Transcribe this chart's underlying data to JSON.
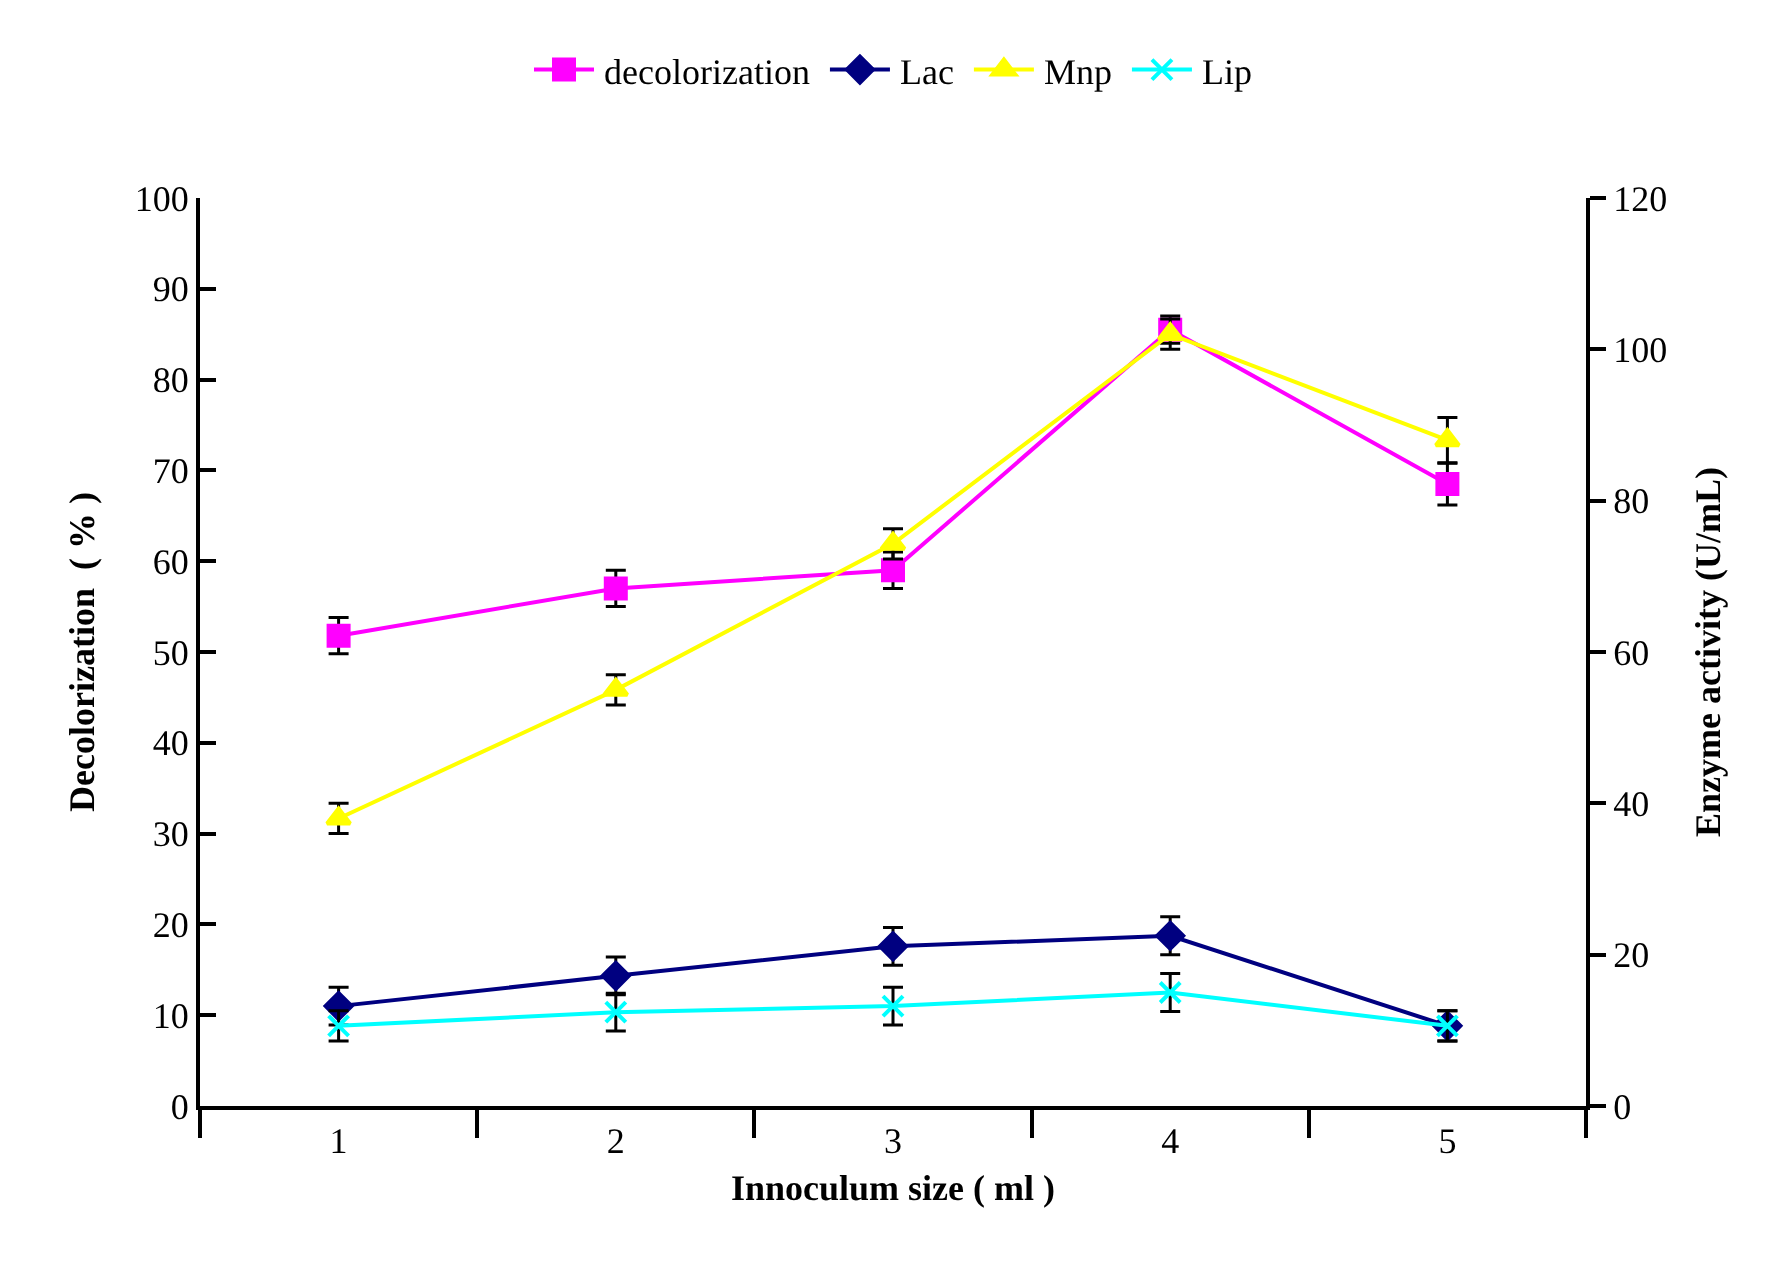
{
  "chart_data": {
    "type": "line",
    "xlabel": "Innoculum size ( ml )",
    "ylabel": "Decolorization  ( % )",
    "y2label": "Enzyme activity (U/mL)",
    "x": [
      1,
      2,
      3,
      4,
      5
    ],
    "xlim": [
      0.5,
      5.5
    ],
    "xticks": [
      1,
      2,
      3,
      4,
      5
    ],
    "ylim": [
      0,
      100
    ],
    "yticks": [
      0,
      10,
      20,
      30,
      40,
      50,
      60,
      70,
      80,
      90,
      100
    ],
    "y2lim": [
      0,
      120
    ],
    "y2ticks": [
      0,
      20,
      40,
      60,
      80,
      100,
      120
    ],
    "legend": "top",
    "series": [
      {
        "name": "decolorization",
        "color": "#ff00ff",
        "marker": "square",
        "values": [
          51.8,
          57,
          59,
          85.5,
          68.5
        ],
        "errors": [
          2,
          2,
          2,
          1.5,
          2.3
        ]
      },
      {
        "name": "Lac",
        "color": "#000080",
        "marker": "diamond",
        "axis": "y2",
        "values": [
          13.2,
          17.2,
          21.1,
          22.5,
          10.6
        ],
        "errors": [
          2.5,
          2.5,
          2.5,
          2.5,
          2
        ]
      },
      {
        "name": "Mnp",
        "color": "#ffff00",
        "marker": "triangle",
        "axis": "y2",
        "values": [
          38,
          55,
          74.3,
          102,
          88
        ],
        "errors": [
          2,
          2,
          2,
          2,
          3
        ]
      },
      {
        "name": "Lip",
        "color": "#00ffff",
        "marker": "cross",
        "axis": "y2",
        "values": [
          10.6,
          12.4,
          13.2,
          15,
          10.6
        ],
        "errors": [
          2,
          2.5,
          2.5,
          2.5,
          2
        ]
      }
    ]
  }
}
